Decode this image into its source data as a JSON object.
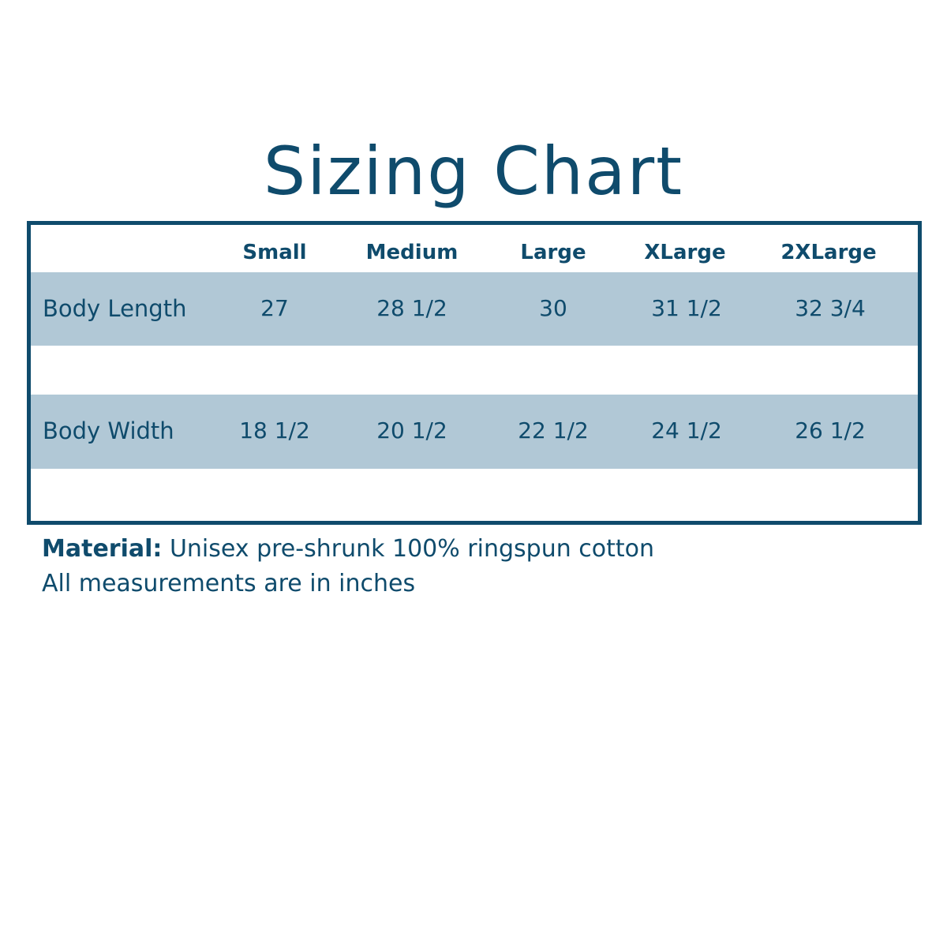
{
  "title": "Sizing Chart",
  "colors": {
    "primary": "#0f4b6c",
    "band": "#b1c8d6"
  },
  "columns": [
    "Small",
    "Medium",
    "Large",
    "XLarge",
    "2XLarge"
  ],
  "rows": [
    {
      "label": "Body Length",
      "values": [
        "27",
        "28 1/2",
        "30",
        "31 1/2",
        "32 3/4"
      ]
    },
    {
      "label": "Body Width",
      "values": [
        "18 1/2",
        "20 1/2",
        "22 1/2",
        "24 1/2",
        "26 1/2"
      ]
    }
  ],
  "notes": {
    "material_label": "Material:",
    "material_text": "Unisex pre-shrunk 100% ringspun cotton",
    "units": "All measurements are in inches"
  }
}
